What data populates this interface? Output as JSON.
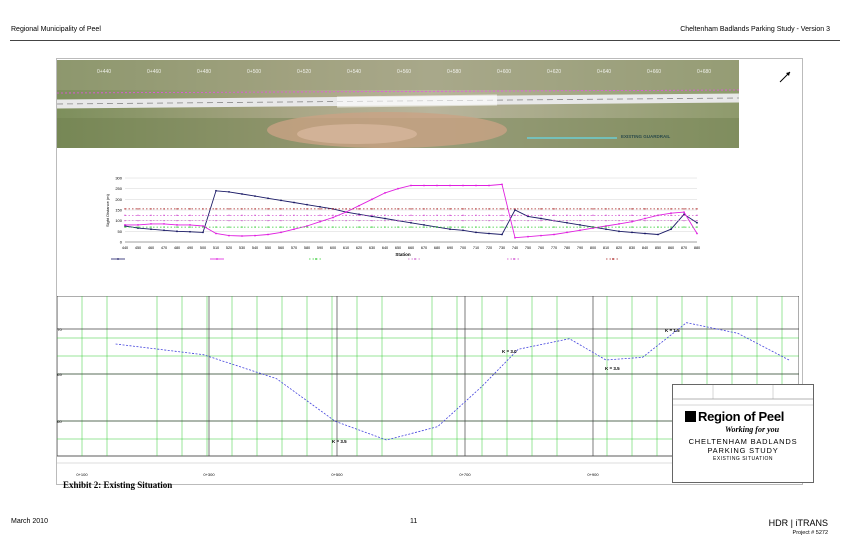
{
  "header": {
    "left": "Regional Municipality of Peel",
    "right": "Cheltenham Badlands Parking Study - Version 3"
  },
  "aerial": {
    "legend_label": "EXISTING GUARDRAIL",
    "colors": {
      "guardrail": "#66d9e8",
      "terrain": "#9aa57a",
      "road": "#dcdcdc"
    }
  },
  "chart_data": [
    {
      "type": "line",
      "ylabel": "Sight Distance (m)",
      "xlabel": "Station",
      "ylim": [
        0,
        300
      ],
      "yticks": [
        0,
        50,
        100,
        150,
        200,
        250,
        300
      ],
      "grid": true,
      "legend_position": "bottom",
      "categories": [
        "440",
        "450",
        "460",
        "470",
        "480",
        "490",
        "500",
        "510",
        "520",
        "530",
        "540",
        "550",
        "560",
        "570",
        "580",
        "590",
        "600",
        "610",
        "620",
        "630",
        "640",
        "650",
        "660",
        "670",
        "680",
        "690",
        "700",
        "710",
        "720",
        "730",
        "740",
        "750",
        "760",
        "770",
        "780",
        "790",
        "800",
        "810",
        "820",
        "830",
        "840",
        "850",
        "860",
        "870",
        "880"
      ],
      "series": [
        {
          "color": "#1a1a66",
          "style": "solid",
          "values": [
            75,
            65,
            60,
            55,
            50,
            48,
            45,
            240,
            235,
            225,
            215,
            205,
            195,
            185,
            175,
            165,
            155,
            140,
            130,
            120,
            110,
            100,
            90,
            80,
            70,
            60,
            55,
            45,
            40,
            35,
            150,
            120,
            110,
            100,
            90,
            80,
            70,
            60,
            50,
            45,
            40,
            35,
            60,
            130,
            90
          ]
        },
        {
          "color": "#e020e0",
          "style": "solid",
          "values": [
            80,
            80,
            85,
            85,
            80,
            80,
            75,
            40,
            30,
            28,
            30,
            35,
            45,
            60,
            75,
            95,
            115,
            140,
            170,
            200,
            230,
            250,
            265,
            265,
            265,
            265,
            265,
            265,
            265,
            270,
            20,
            25,
            30,
            35,
            45,
            55,
            65,
            75,
            85,
            95,
            110,
            125,
            135,
            140,
            40
          ]
        },
        {
          "color": "#33cc33",
          "style": "dotted",
          "values": [
            70,
            70,
            70,
            70,
            70,
            70,
            70,
            70,
            70,
            70,
            70,
            70,
            70,
            70,
            70,
            70,
            70,
            70,
            70,
            70,
            70,
            70,
            70,
            70,
            70,
            70,
            70,
            70,
            70,
            70,
            70,
            70,
            70,
            70,
            70,
            70,
            70,
            70,
            70,
            70,
            70,
            70,
            70,
            70,
            70
          ]
        },
        {
          "color": "#cc66cc",
          "style": "dotted",
          "values": [
            100,
            100,
            100,
            100,
            100,
            100,
            100,
            100,
            100,
            100,
            100,
            100,
            100,
            100,
            100,
            100,
            100,
            100,
            100,
            100,
            100,
            100,
            100,
            100,
            100,
            100,
            100,
            100,
            100,
            100,
            100,
            100,
            100,
            100,
            100,
            100,
            100,
            100,
            100,
            100,
            100,
            100,
            100,
            100,
            100
          ]
        },
        {
          "color": "#cc44cc",
          "style": "dotted",
          "values": [
            125,
            125,
            125,
            125,
            125,
            125,
            125,
            125,
            125,
            125,
            125,
            125,
            125,
            125,
            125,
            125,
            125,
            125,
            125,
            125,
            125,
            125,
            125,
            125,
            125,
            125,
            125,
            125,
            125,
            125,
            125,
            125,
            125,
            125,
            125,
            125,
            125,
            125,
            125,
            125,
            125,
            125,
            125,
            125,
            125
          ]
        },
        {
          "color": "#aa2222",
          "style": "dotted",
          "values": [
            155,
            155,
            155,
            155,
            155,
            155,
            155,
            155,
            155,
            155,
            155,
            155,
            155,
            155,
            155,
            155,
            155,
            155,
            155,
            155,
            155,
            155,
            155,
            155,
            155,
            155,
            155,
            155,
            155,
            155,
            155,
            155,
            155,
            155,
            155,
            155,
            155,
            155,
            155,
            155,
            155,
            155,
            155,
            155,
            155
          ]
        }
      ]
    },
    {
      "type": "line",
      "ylim": [
        0,
        6
      ],
      "xlim": [
        0,
        1
      ],
      "grid": true,
      "series": [
        {
          "color": "#4444dd",
          "style": "dashed",
          "x": [
            0.08,
            0.2,
            0.3,
            0.38,
            0.45,
            0.52,
            0.58,
            0.63,
            0.7,
            0.75,
            0.8,
            0.86,
            0.93,
            1.0
          ],
          "values": [
            4.2,
            3.8,
            2.9,
            1.3,
            0.6,
            1.1,
            2.6,
            4.0,
            4.4,
            3.6,
            3.7,
            5.0,
            4.6,
            3.6
          ]
        }
      ],
      "x_tick_labels": [
        "0+100",
        "0+300",
        "0+500",
        "0+700",
        "0+900"
      ],
      "y_tick_labels": [
        "270",
        "265",
        "260"
      ],
      "annotations": [
        "K = 3.5",
        "K = 3.0",
        "K = 3.5",
        "K = 1.5"
      ]
    }
  ],
  "caption": "Exhibit 2: Existing Situation",
  "title_block": {
    "logo_text": "Region of Peel",
    "tagline": "Working for you",
    "title_line1": "CHELTENHAM BADLANDS",
    "title_line2": "PARKING STUDY",
    "subtitle": "EXISTING SITUATION"
  },
  "footer": {
    "date": "March 2010",
    "page": "11",
    "brand": "HDR | iTRANS",
    "project": "Project # 5272"
  }
}
